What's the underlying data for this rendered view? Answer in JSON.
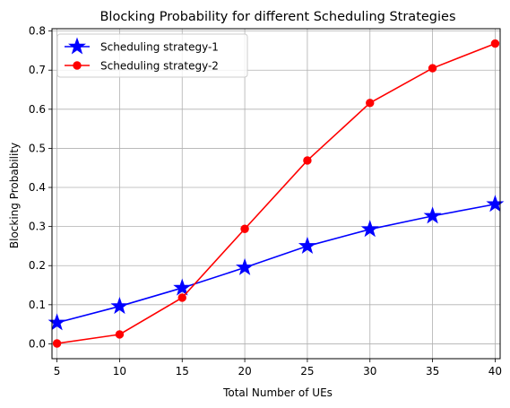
{
  "chart_data": {
    "type": "line",
    "title": "Blocking Probability for different Scheduling Strategies",
    "xlabel": "Total Number of UEs",
    "ylabel": "Blocking Probability",
    "x": [
      5,
      10,
      15,
      20,
      25,
      30,
      35,
      40
    ],
    "xticks": [
      5,
      10,
      15,
      20,
      25,
      30,
      35,
      40
    ],
    "xlim": [
      4.6,
      40.4
    ],
    "yticks": [
      0.0,
      0.1,
      0.2,
      0.3,
      0.4,
      0.5,
      0.6,
      0.7,
      0.8
    ],
    "ylim": [
      -0.038,
      0.806
    ],
    "grid": true,
    "legend_position": "upper-left",
    "series": [
      {
        "name": "Scheduling strategy-1",
        "color": "#0000ff",
        "marker": "star",
        "values": [
          0.054,
          0.096,
          0.143,
          0.195,
          0.25,
          0.293,
          0.327,
          0.357
        ]
      },
      {
        "name": "Scheduling strategy-2",
        "color": "#ff0000",
        "marker": "circle",
        "values": [
          0.001,
          0.024,
          0.118,
          0.294,
          0.469,
          0.616,
          0.705,
          0.768
        ]
      }
    ]
  }
}
